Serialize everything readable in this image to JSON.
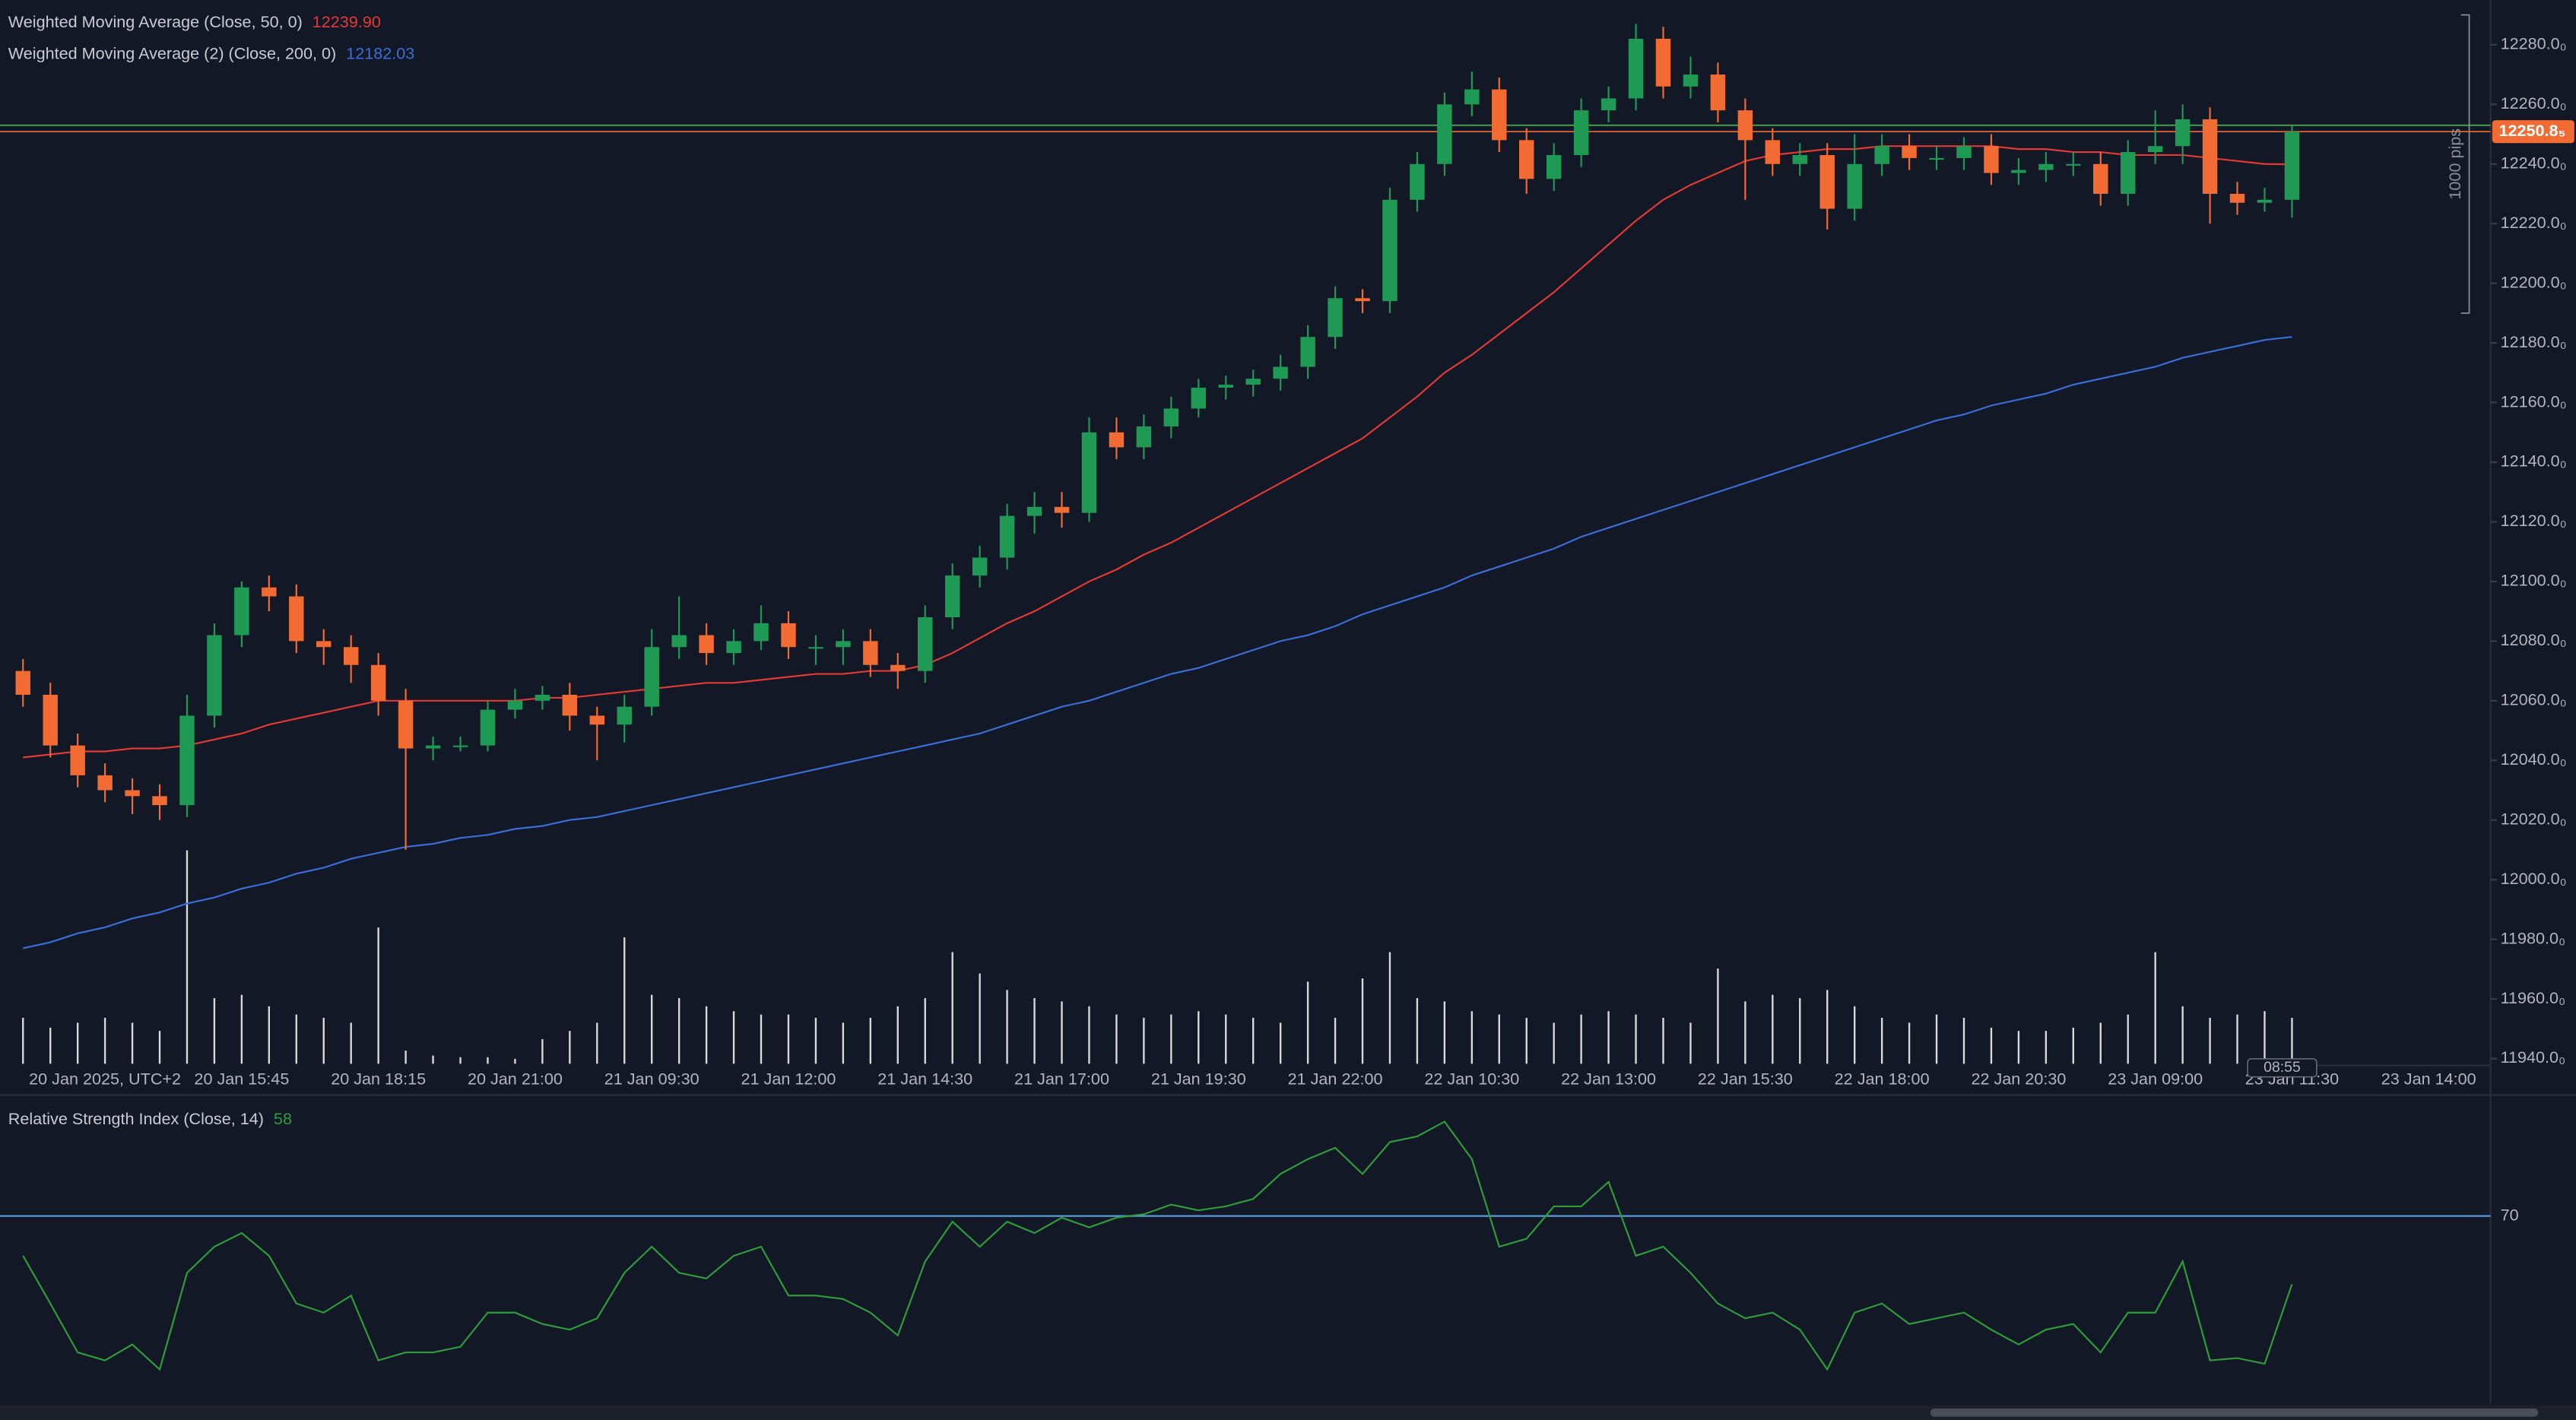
{
  "chart_data": [
    {
      "type": "candlestick",
      "categories": [
        null,
        null,
        null,
        "20 Jan 2025, UTC+2",
        null,
        null,
        null,
        null,
        "20 Jan 15:45",
        null,
        null,
        null,
        null,
        "20 Jan 18:15",
        null,
        null,
        null,
        null,
        "20 Jan 21:00",
        null,
        null,
        null,
        null,
        "21 Jan 09:30",
        null,
        null,
        null,
        null,
        "21 Jan 12:00",
        null,
        null,
        null,
        null,
        "21 Jan 14:30",
        null,
        null,
        null,
        null,
        "21 Jan 17:00",
        null,
        null,
        null,
        null,
        "21 Jan 19:30",
        null,
        null,
        null,
        null,
        "21 Jan 22:00",
        null,
        null,
        null,
        null,
        "22 Jan 10:30",
        null,
        null,
        null,
        null,
        "22 Jan 13:00",
        null,
        null,
        null,
        null,
        "22 Jan 15:30",
        null,
        null,
        null,
        null,
        "22 Jan 18:00",
        null,
        null,
        null,
        null,
        "22 Jan 20:30",
        null,
        null,
        null,
        null,
        "23 Jan 09:00",
        null,
        null,
        null,
        null,
        "23 Jan 11:30",
        null,
        null,
        null,
        null,
        "23 Jan 14:00"
      ],
      "open": [
        12070,
        12062,
        12045,
        12035,
        12030,
        12028,
        12025,
        12055,
        12082,
        12098,
        12095,
        12080,
        12078,
        12072,
        12060,
        12044,
        12045,
        12045,
        12057,
        12060,
        12062,
        12055,
        12052,
        12058,
        12078,
        12082,
        12076,
        12080,
        12086,
        12078,
        12078,
        12080,
        12072,
        12070,
        12088,
        12102,
        12108,
        12122,
        12125,
        12123,
        12150,
        12145,
        12152,
        12158,
        12165,
        12166,
        12168,
        12172,
        12182,
        12195,
        12194,
        12228,
        12240,
        12260,
        12265,
        12248,
        12235,
        12243,
        12258,
        12262,
        12282,
        12266,
        12270,
        12258,
        12248,
        12240,
        12243,
        12225,
        12240,
        12246,
        12242,
        12242,
        12246,
        12237,
        12238,
        12240,
        12240,
        12230,
        12244,
        12246,
        12255,
        12230,
        12227,
        12228,
        null,
        null,
        null,
        null,
        null
      ],
      "high": [
        12074,
        12066,
        12049,
        12039,
        12034,
        12032,
        12062,
        12086,
        12100,
        12102,
        12099,
        12084,
        12082,
        12076,
        12064,
        12048,
        12048,
        12060,
        12064,
        12065,
        12066,
        12058,
        12062,
        12084,
        12095,
        12086,
        12084,
        12092,
        12090,
        12082,
        12084,
        12084,
        12076,
        12092,
        12106,
        12112,
        12126,
        12130,
        12130,
        12155,
        12155,
        12156,
        12162,
        12168,
        12169,
        12171,
        12176,
        12186,
        12199,
        12198,
        12232,
        12244,
        12264,
        12271,
        12269,
        12252,
        12247,
        12262,
        12266,
        12287,
        12286,
        12276,
        12274,
        12262,
        12252,
        12247,
        12247,
        12250,
        12250,
        12250,
        12246,
        12249,
        12250,
        12242,
        12244,
        12244,
        12244,
        12248,
        12258,
        12260,
        12259,
        12234,
        12232,
        12253,
        null,
        null,
        null,
        null,
        null
      ],
      "low": [
        12058,
        12041,
        12031,
        12026,
        12022,
        12020,
        12021,
        12051,
        12078,
        12090,
        12076,
        12072,
        12066,
        12055,
        12010,
        12040,
        12043,
        12043,
        12054,
        12057,
        12050,
        12040,
        12046,
        12055,
        12074,
        12072,
        12072,
        12077,
        12074,
        12072,
        12072,
        12068,
        12064,
        12066,
        12084,
        12098,
        12104,
        12116,
        12118,
        12120,
        12141,
        12141,
        12148,
        12155,
        12161,
        12162,
        12164,
        12168,
        12178,
        12190,
        12190,
        12224,
        12236,
        12256,
        12244,
        12230,
        12231,
        12239,
        12254,
        12258,
        12262,
        12262,
        12254,
        12228,
        12236,
        12236,
        12218,
        12221,
        12236,
        12238,
        12238,
        12238,
        12233,
        12233,
        12234,
        12236,
        12226,
        12226,
        12240,
        12240,
        12220,
        12223,
        12224,
        12222,
        null,
        null,
        null,
        null,
        null
      ],
      "close": [
        12062,
        12045,
        12035,
        12030,
        12028,
        12025,
        12055,
        12082,
        12098,
        12095,
        12080,
        12078,
        12072,
        12060,
        12044,
        12045,
        12045,
        12057,
        12060,
        12062,
        12055,
        12052,
        12058,
        12078,
        12082,
        12076,
        12080,
        12086,
        12078,
        12078,
        12080,
        12072,
        12070,
        12088,
        12102,
        12108,
        12122,
        12125,
        12123,
        12150,
        12145,
        12152,
        12158,
        12165,
        12166,
        12168,
        12172,
        12182,
        12195,
        12194,
        12228,
        12240,
        12260,
        12265,
        12248,
        12235,
        12243,
        12258,
        12262,
        12282,
        12266,
        12270,
        12258,
        12248,
        12240,
        12243,
        12225,
        12240,
        12246,
        12242,
        12242,
        12246,
        12237,
        12238,
        12240,
        12240,
        12230,
        12244,
        12246,
        12255,
        12230,
        12227,
        12228,
        12250.85,
        null,
        null,
        null,
        null,
        null
      ],
      "up_color": "#1f9a55",
      "down_color": "#f26b32",
      "volume": [
        28,
        22,
        25,
        28,
        25,
        20,
        130,
        40,
        42,
        35,
        30,
        28,
        25,
        83,
        8,
        5,
        4,
        4,
        3,
        15,
        20,
        25,
        77,
        42,
        40,
        35,
        32,
        30,
        30,
        28,
        25,
        28,
        35,
        40,
        68,
        55,
        45,
        40,
        38,
        35,
        30,
        28,
        30,
        32,
        30,
        28,
        25,
        50,
        28,
        52,
        68,
        40,
        38,
        32,
        30,
        28,
        25,
        30,
        32,
        30,
        28,
        25,
        58,
        38,
        42,
        40,
        45,
        35,
        28,
        25,
        30,
        28,
        22,
        20,
        20,
        22,
        25,
        30,
        68,
        35,
        28,
        30,
        32,
        28,
        null,
        null,
        null,
        null,
        null
      ],
      "volume_color": "#d9d9d9",
      "series": [
        {
          "name": "Weighted Moving Average (Close, 50, 0)",
          "color": "#e53935",
          "values": [
            12041,
            12042,
            12043,
            12043,
            12044,
            12044,
            12045,
            12047,
            12049,
            12052,
            12054,
            12056,
            12058,
            12060,
            12060,
            12060,
            12060,
            12060,
            12060,
            12061,
            12061,
            12062,
            12063,
            12064,
            12065,
            12066,
            12066,
            12067,
            12068,
            12069,
            12069,
            12070,
            12070,
            12072,
            12076,
            12081,
            12086,
            12090,
            12095,
            12100,
            12104,
            12109,
            12113,
            12118,
            12123,
            12128,
            12133,
            12138,
            12143,
            12148,
            12155,
            12162,
            12170,
            12176,
            12183,
            12190,
            12197,
            12205,
            12213,
            12221,
            12228,
            12233,
            12237,
            12241,
            12243,
            12244,
            12245,
            12245,
            12246,
            12246,
            12246,
            12246,
            12246,
            12245,
            12245,
            12244,
            12244,
            12243,
            12243,
            12243,
            12242,
            12241,
            12240,
            12239.9,
            null,
            null,
            null,
            null,
            null
          ],
          "value_labels": [
            null,
            null,
            null,
            null,
            null,
            null,
            null,
            null,
            null,
            null,
            null,
            null,
            null,
            null,
            null,
            null,
            null,
            null,
            null,
            null,
            null,
            null,
            null,
            null,
            null,
            null,
            null,
            null,
            null,
            null,
            null,
            null,
            null,
            null,
            null,
            null,
            null,
            null,
            null,
            null,
            null,
            null,
            null,
            null,
            null,
            null,
            null,
            null,
            null,
            null,
            null,
            null,
            null,
            null,
            null,
            null,
            null,
            null,
            null,
            null,
            null,
            null,
            null,
            null,
            null,
            null,
            null,
            null,
            null,
            null,
            null,
            null,
            null,
            null,
            null,
            null,
            null,
            null,
            null,
            null,
            null,
            null,
            null,
            "12239.90",
            null,
            null,
            null,
            null,
            null
          ]
        },
        {
          "name": "Weighted Moving Average (2) (Close, 200, 0)",
          "color": "#3a6fd8",
          "values": [
            11977,
            11979,
            11982,
            11984,
            11987,
            11989,
            11992,
            11994,
            11997,
            11999,
            12002,
            12004,
            12007,
            12009,
            12011,
            12012,
            12014,
            12015,
            12017,
            12018,
            12020,
            12021,
            12023,
            12025,
            12027,
            12029,
            12031,
            12033,
            12035,
            12037,
            12039,
            12041,
            12043,
            12045,
            12047,
            12049,
            12052,
            12055,
            12058,
            12060,
            12063,
            12066,
            12069,
            12071,
            12074,
            12077,
            12080,
            12082,
            12085,
            12089,
            12092,
            12095,
            12098,
            12102,
            12105,
            12108,
            12111,
            12115,
            12118,
            12121,
            12124,
            12127,
            12130,
            12133,
            12136,
            12139,
            12142,
            12145,
            12148,
            12151,
            12154,
            12156,
            12159,
            12161,
            12163,
            12166,
            12168,
            12170,
            12172,
            12175,
            12177,
            12179,
            12181,
            12182.03,
            null,
            null,
            null,
            null,
            null
          ]
        }
      ],
      "ylim": [
        11930,
        12295
      ],
      "yticks": [
        {
          "value": 12280,
          "label": "12280.0₀"
        },
        {
          "value": 12260,
          "label": "12260.0₀"
        },
        {
          "value": 12240,
          "label": "12240.0₀"
        },
        {
          "value": 12220,
          "label": "12220.0₀"
        },
        {
          "value": 12200,
          "label": "12200.0₀"
        },
        {
          "value": 12180,
          "label": "12180.0₀"
        },
        {
          "value": 12160,
          "label": "12160.0₀"
        },
        {
          "value": 12140,
          "label": "12140.0₀"
        },
        {
          "value": 12120,
          "label": "12120.0₀"
        },
        {
          "value": 12100,
          "label": "12100.0₀"
        },
        {
          "value": 12080,
          "label": "12080.0₀"
        },
        {
          "value": 12060,
          "label": "12060.0₀"
        },
        {
          "value": 12040,
          "label": "12040.0₀"
        },
        {
          "value": 12020,
          "label": "12020.0₀"
        },
        {
          "value": 12000,
          "label": "12000.0₀"
        },
        {
          "value": 11980,
          "label": "11980.0₀"
        },
        {
          "value": 11960,
          "label": "11960.0₀"
        },
        {
          "value": 11940,
          "label": "11940.0₀"
        }
      ],
      "last_price": {
        "value": 12250.85,
        "label": "12250.8₅",
        "color": "#f26b32"
      },
      "lines": [
        {
          "value": 12253,
          "color": "#4caf50"
        }
      ],
      "measure": {
        "label": "1000 pips",
        "from": 12190,
        "to": 12290
      },
      "countdown": "08:55"
    },
    {
      "type": "line",
      "title": "Relative Strength Index (Close, 14)",
      "color": "#2e9d3a",
      "values": [
        63,
        54.6,
        46,
        44.6,
        47.4,
        43,
        60,
        64.6,
        67,
        63,
        54.6,
        53,
        56,
        44.6,
        46,
        46,
        47,
        53,
        53,
        51,
        50,
        52,
        60,
        64.6,
        60,
        59,
        63,
        64.6,
        56,
        56,
        55.4,
        53,
        49,
        62,
        69,
        64.6,
        69,
        67,
        69.7,
        68,
        69.7,
        70.3,
        72,
        71,
        71.7,
        73,
        77.4,
        80,
        82,
        77.4,
        83,
        84,
        86.6,
        80,
        64.6,
        66,
        71.7,
        71.7,
        76,
        63,
        64.6,
        60,
        54.6,
        52,
        53,
        50,
        43,
        53,
        54.6,
        51,
        52,
        53,
        50,
        47.4,
        50,
        51,
        46,
        53,
        53,
        62,
        44.6,
        45,
        44,
        58,
        null,
        null,
        null,
        null,
        null
      ],
      "ylim": [
        37,
        91
      ],
      "yticks": [
        70
      ],
      "hline_color": "#5b9bd5"
    }
  ]
}
